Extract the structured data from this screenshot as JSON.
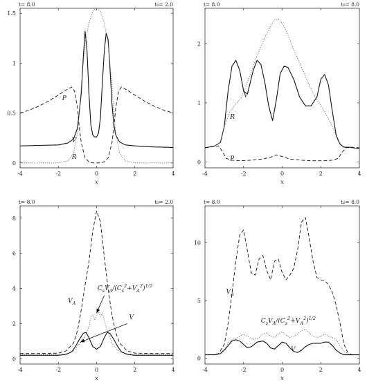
{
  "chart_data": [
    {
      "type": "line",
      "header_left": "t= 8.0",
      "header_right": "t₀= 2.0",
      "xlabel": "x",
      "xlim": [
        -4,
        4
      ],
      "ylim": [
        -0.05,
        1.55
      ],
      "xticks": [
        "-4",
        "-2",
        "0",
        "2",
        "4"
      ],
      "yticks": [
        "0",
        "0.5",
        "1",
        "1.5"
      ],
      "ytick_values": [
        0,
        0.5,
        1,
        1.5
      ],
      "labels": [
        {
          "text": "P",
          "x": -1.8,
          "y": 0.63
        },
        {
          "text": "V",
          "x": -1.3,
          "y": 0.21
        },
        {
          "text": "R",
          "x": -1.3,
          "y": 0.04
        }
      ],
      "series": [
        {
          "name": "P",
          "style": "dashed",
          "x": [
            -4,
            -3.5,
            -3,
            -2.5,
            -2,
            -1.6,
            -1.3,
            -1.15,
            -1.0,
            -0.9,
            -0.8,
            -0.6,
            -0.4,
            -0.2,
            0,
            0.2,
            0.4,
            0.6,
            0.8,
            0.9,
            1.0,
            1.15,
            1.3,
            1.6,
            2,
            2.5,
            3,
            3.5,
            4
          ],
          "y": [
            0.5,
            0.53,
            0.57,
            0.62,
            0.68,
            0.73,
            0.76,
            0.72,
            0.55,
            0.35,
            0.2,
            0.05,
            0.01,
            0.0,
            0.0,
            0.0,
            0.01,
            0.05,
            0.2,
            0.35,
            0.55,
            0.72,
            0.76,
            0.73,
            0.68,
            0.62,
            0.57,
            0.53,
            0.5
          ]
        },
        {
          "name": "V",
          "style": "solid",
          "x": [
            -4,
            -3,
            -2,
            -1.5,
            -1.2,
            -1.0,
            -0.8,
            -0.7,
            -0.6,
            -0.5,
            -0.4,
            -0.3,
            -0.2,
            -0.1,
            0,
            0.1,
            0.2,
            0.3,
            0.4,
            0.5,
            0.6,
            0.7,
            0.8,
            0.9,
            1.0,
            1.2,
            1.5,
            2,
            3,
            4
          ],
          "y": [
            0.17,
            0.175,
            0.18,
            0.2,
            0.24,
            0.35,
            0.7,
            1.05,
            1.32,
            1.12,
            0.7,
            0.38,
            0.28,
            0.26,
            0.26,
            0.3,
            0.45,
            0.8,
            1.12,
            1.3,
            1.24,
            0.95,
            0.6,
            0.38,
            0.28,
            0.21,
            0.18,
            0.17,
            0.16,
            0.155
          ]
        },
        {
          "name": "R",
          "style": "dotted",
          "x": [
            -4,
            -3,
            -2,
            -1.5,
            -1.2,
            -1.0,
            -0.9,
            -0.8,
            -0.6,
            -0.4,
            -0.2,
            0,
            0.2,
            0.4,
            0.6,
            0.8,
            0.9,
            1.0,
            1.2,
            1.5,
            2,
            3,
            4
          ],
          "y": [
            0,
            0,
            0.0,
            0.02,
            0.1,
            0.3,
            0.5,
            0.78,
            1.2,
            1.4,
            1.52,
            1.56,
            1.52,
            1.4,
            1.2,
            0.78,
            0.5,
            0.3,
            0.1,
            0.02,
            0.0,
            0,
            0
          ]
        }
      ]
    },
    {
      "type": "line",
      "header_left": "t= 8.0",
      "header_right": "t₀= 8.0",
      "xlabel": "x",
      "xlim": [
        -4,
        4
      ],
      "ylim": [
        -0.1,
        2.6
      ],
      "xticks": [
        "-4",
        "-2",
        "0",
        "2",
        "4"
      ],
      "yticks": [
        "0",
        "1",
        "2"
      ],
      "ytick_values": [
        0,
        1,
        2
      ],
      "labels": [
        {
          "text": "V",
          "x": -2.0,
          "y": 1.1
        },
        {
          "text": "R",
          "x": -2.7,
          "y": 0.73
        },
        {
          "text": "P",
          "x": -2.7,
          "y": 0.02
        }
      ],
      "series": [
        {
          "name": "V",
          "style": "solid",
          "x": [
            -4,
            -3.5,
            -3.2,
            -3.0,
            -2.8,
            -2.6,
            -2.4,
            -2.2,
            -2.0,
            -1.8,
            -1.5,
            -1.3,
            -1.1,
            -0.9,
            -0.7,
            -0.5,
            -0.3,
            -0.1,
            0.1,
            0.3,
            0.6,
            0.9,
            1.2,
            1.5,
            1.8,
            2.0,
            2.2,
            2.4,
            2.6,
            2.8,
            3.0,
            3.2,
            3.5,
            4
          ],
          "y": [
            0.24,
            0.27,
            0.33,
            0.6,
            1.2,
            1.62,
            1.72,
            1.55,
            1.2,
            1.15,
            1.55,
            1.72,
            1.65,
            1.35,
            0.95,
            0.7,
            1.05,
            1.5,
            1.62,
            1.6,
            1.4,
            1.1,
            0.95,
            0.95,
            1.1,
            1.4,
            1.48,
            1.3,
            0.85,
            0.45,
            0.3,
            0.25,
            0.25,
            0.22
          ]
        },
        {
          "name": "R",
          "style": "dotted",
          "x": [
            -4,
            -3.5,
            -3.2,
            -3.0,
            -2.7,
            -2.4,
            -2.1,
            -1.8,
            -1.5,
            -1.2,
            -0.9,
            -0.6,
            -0.4,
            -0.2,
            0,
            0.3,
            0.6,
            1.0,
            1.4,
            1.8,
            2.2,
            2.6,
            2.9,
            3.1,
            3.3,
            3.6,
            4
          ],
          "y": [
            0.24,
            0.27,
            0.33,
            0.6,
            0.85,
            0.98,
            1.1,
            1.35,
            1.62,
            1.88,
            2.1,
            2.3,
            2.4,
            2.42,
            2.35,
            2.15,
            1.9,
            1.6,
            1.3,
            1.05,
            0.85,
            0.6,
            0.35,
            0.28,
            0.25,
            0.24,
            0.23
          ]
        },
        {
          "name": "P",
          "style": "dashed",
          "x": [
            -4,
            -3.6,
            -3.3,
            -3.1,
            -2.9,
            -2.6,
            -2.2,
            -1.6,
            -1.0,
            -0.6,
            -0.3,
            0,
            0.4,
            1.0,
            1.6,
            2.2,
            2.6,
            2.9,
            3.1,
            3.3,
            3.6,
            4
          ],
          "y": [
            0.24,
            0.26,
            0.27,
            0.18,
            0.06,
            0.03,
            0.02,
            0.03,
            0.05,
            0.08,
            0.12,
            0.09,
            0.05,
            0.03,
            0.02,
            0.02,
            0.03,
            0.06,
            0.16,
            0.24,
            0.25,
            0.24
          ]
        }
      ]
    },
    {
      "type": "line",
      "header_left": "t= 8.0",
      "header_right": "t₀= 2.0",
      "xlabel": "x",
      "xlim": [
        -4,
        4
      ],
      "ylim": [
        -0.3,
        8.7
      ],
      "xticks": [
        "-4",
        "-2",
        "0",
        "2",
        "4"
      ],
      "yticks": [
        "0",
        "2",
        "4",
        "6",
        "8"
      ],
      "ytick_values": [
        0,
        2,
        4,
        6,
        8
      ],
      "labels": [
        {
          "text": "V_A",
          "x": -1.5,
          "y": 3.2
        },
        {
          "text": "C_sV_A/(C_s²+V_A²)^1/2",
          "x": 0.05,
          "y": 3.9
        },
        {
          "text": "V",
          "x": 1.7,
          "y": 2.25
        }
      ],
      "arrows": [
        {
          "from": [
            0.4,
            3.6
          ],
          "to": [
            0.0,
            2.6
          ]
        },
        {
          "from": [
            1.6,
            2.0
          ],
          "to": [
            -0.85,
            0.95
          ]
        }
      ],
      "series": [
        {
          "name": "V_A",
          "style": "dashed",
          "x": [
            -4,
            -3,
            -2,
            -1.6,
            -1.2,
            -1.0,
            -0.8,
            -0.6,
            -0.4,
            -0.2,
            0,
            0.2,
            0.4,
            0.6,
            0.8,
            1.0,
            1.2,
            1.6,
            2,
            3,
            4
          ],
          "y": [
            0.3,
            0.3,
            0.32,
            0.45,
            0.9,
            1.6,
            2.8,
            4.2,
            5.5,
            7.3,
            8.4,
            7.8,
            5.8,
            4.0,
            2.5,
            1.5,
            0.9,
            0.45,
            0.32,
            0.3,
            0.3
          ]
        },
        {
          "name": "C_sV_A/(C_s²+V_A²)^1/2",
          "style": "dotted",
          "x": [
            -4,
            -3,
            -2,
            -1.5,
            -1.2,
            -1.0,
            -0.8,
            -0.6,
            -0.4,
            -0.3,
            -0.2,
            -0.1,
            0,
            0.1,
            0.2,
            0.3,
            0.4,
            0.6,
            0.8,
            1.0,
            1.2,
            1.5,
            2,
            3,
            4
          ],
          "y": [
            0.25,
            0.25,
            0.25,
            0.3,
            0.45,
            0.7,
            1.0,
            1.3,
            1.8,
            2.4,
            2.5,
            2.2,
            2.5,
            2.7,
            2.4,
            2.6,
            2.2,
            1.5,
            0.9,
            0.6,
            0.4,
            0.3,
            0.25,
            0.25,
            0.25
          ]
        },
        {
          "name": "V",
          "style": "solid",
          "x": [
            -4,
            -3,
            -2,
            -1.6,
            -1.3,
            -1.1,
            -0.9,
            -0.7,
            -0.55,
            -0.4,
            -0.2,
            0,
            0.2,
            0.4,
            0.55,
            0.7,
            0.9,
            1.1,
            1.3,
            1.6,
            2,
            3,
            4
          ],
          "y": [
            0.2,
            0.2,
            0.2,
            0.25,
            0.4,
            0.7,
            1.1,
            1.45,
            1.5,
            1.2,
            0.7,
            0.55,
            0.7,
            1.2,
            1.5,
            1.45,
            1.1,
            0.7,
            0.4,
            0.25,
            0.2,
            0.2,
            0.2
          ]
        }
      ]
    },
    {
      "type": "line",
      "header_left": "t= 8.0",
      "header_right": "t₀= 8.0",
      "xlabel": "x",
      "xlim": [
        -4,
        4
      ],
      "ylim": [
        -0.5,
        13.2
      ],
      "xticks": [
        "-4",
        "-2",
        "0",
        "2",
        "4"
      ],
      "yticks": [
        "0",
        "5",
        "10"
      ],
      "ytick_values": [
        0,
        5,
        10
      ],
      "labels": [
        {
          "text": "V_A",
          "x": -2.9,
          "y": 5.6
        },
        {
          "text": "C_sV_A/(C_s²+V_A²)^1/2",
          "x": -1.1,
          "y": 3.1
        },
        {
          "text": "V",
          "x": 0.45,
          "y": 0.6
        }
      ],
      "series": [
        {
          "name": "V_A",
          "style": "dashed",
          "x": [
            -4,
            -3.6,
            -3.3,
            -3.0,
            -2.8,
            -2.6,
            -2.4,
            -2.2,
            -2.0,
            -1.8,
            -1.6,
            -1.4,
            -1.2,
            -1.0,
            -0.8,
            -0.6,
            -0.4,
            -0.2,
            0.0,
            0.2,
            0.4,
            0.6,
            0.8,
            1.0,
            1.2,
            1.4,
            1.6,
            1.8,
            2.0,
            2.2,
            2.4,
            2.6,
            2.8,
            3.0,
            3.2,
            3.4,
            3.6,
            4
          ],
          "y": [
            0.3,
            0.3,
            0.4,
            1.2,
            3.0,
            5.6,
            8.4,
            10.7,
            11.1,
            9.3,
            7.4,
            7.2,
            8.6,
            8.9,
            7.6,
            6.8,
            8.4,
            8.6,
            7.4,
            6.8,
            7.2,
            7.8,
            9.4,
            11.8,
            12.2,
            10.4,
            8.4,
            7.0,
            6.8,
            6.7,
            6.4,
            5.7,
            4.6,
            3.0,
            1.2,
            0.5,
            0.3,
            0.3
          ]
        },
        {
          "name": "C_sV_A/(C_s²+V_A²)^1/2",
          "style": "dotted",
          "x": [
            -4,
            -3.5,
            -3.2,
            -3.0,
            -2.8,
            -2.6,
            -2.4,
            -2.2,
            -2.0,
            -1.8,
            -1.5,
            -1.2,
            -1.0,
            -0.8,
            -0.6,
            -0.4,
            -0.2,
            0.0,
            0.2,
            0.4,
            0.6,
            0.8,
            1.0,
            1.2,
            1.4,
            1.6,
            1.8,
            2.0,
            2.2,
            2.4,
            2.6,
            2.8,
            3.0,
            3.2,
            3.5,
            4
          ],
          "y": [
            0.3,
            0.3,
            0.4,
            0.8,
            1.3,
            1.6,
            1.7,
            1.9,
            2.1,
            1.9,
            1.6,
            1.8,
            2.1,
            2.2,
            1.9,
            1.8,
            2.1,
            2.3,
            2.0,
            1.8,
            1.9,
            2.1,
            2.4,
            2.5,
            2.2,
            1.9,
            1.8,
            1.9,
            2.1,
            1.9,
            1.8,
            1.6,
            1.1,
            0.6,
            0.3,
            0.3
          ]
        },
        {
          "name": "V",
          "style": "solid",
          "x": [
            -4,
            -3.5,
            -3.2,
            -3.0,
            -2.8,
            -2.6,
            -2.4,
            -2.2,
            -2.0,
            -1.8,
            -1.6,
            -1.3,
            -1.0,
            -0.8,
            -0.6,
            -0.4,
            -0.2,
            0.0,
            0.2,
            0.4,
            0.6,
            0.8,
            1.0,
            1.2,
            1.4,
            1.6,
            1.8,
            2.0,
            2.2,
            2.4,
            2.6,
            2.8,
            3.0,
            3.2,
            3.5,
            4
          ],
          "y": [
            0.3,
            0.3,
            0.4,
            0.7,
            1.1,
            1.5,
            1.6,
            1.5,
            1.2,
            0.9,
            1.0,
            1.4,
            1.5,
            1.3,
            0.9,
            0.8,
            1.1,
            1.4,
            1.3,
            0.9,
            0.6,
            0.5,
            0.7,
            1.0,
            1.2,
            1.3,
            1.3,
            1.3,
            1.4,
            1.4,
            1.1,
            0.7,
            0.45,
            0.3,
            0.3,
            0.3
          ]
        }
      ]
    }
  ]
}
